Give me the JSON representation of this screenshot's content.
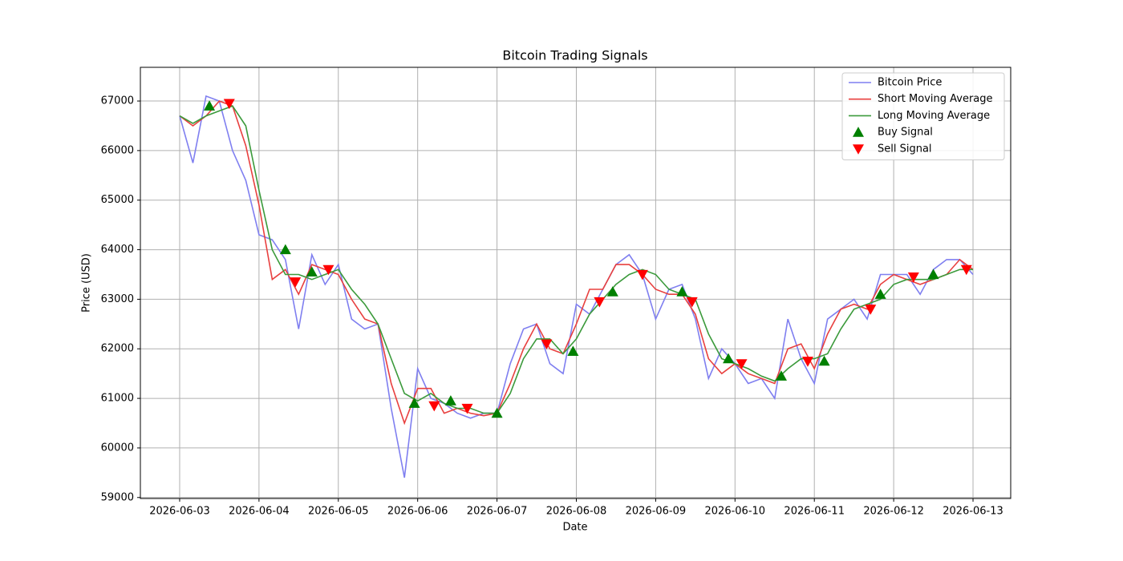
{
  "chart_data": {
    "type": "line",
    "title": "Bitcoin Trading Signals",
    "xlabel": "Date",
    "ylabel": "Price (USD)",
    "grid": true,
    "legend": "upper right",
    "xlim": [
      "2026-06-02 12:07",
      "2026-06-13 11:24"
    ],
    "xticks": [
      "2026-06-03",
      "2026-06-04",
      "2026-06-05",
      "2026-06-06",
      "2026-06-07",
      "2026-06-08",
      "2026-06-09",
      "2026-06-10",
      "2026-06-11",
      "2026-06-12",
      "2026-06-13"
    ],
    "ylim": [
      58980,
      67680
    ],
    "yticks": [
      59000,
      60000,
      61000,
      62000,
      63000,
      64000,
      65000,
      66000,
      67000
    ],
    "x": [
      "2026-06-03 00:00",
      "2026-06-03 04:00",
      "2026-06-03 08:00",
      "2026-06-03 12:00",
      "2026-06-03 16:00",
      "2026-06-03 20:00",
      "2026-06-04 00:00",
      "2026-06-04 04:00",
      "2026-06-04 08:00",
      "2026-06-04 12:00",
      "2026-06-04 16:00",
      "2026-06-04 20:00",
      "2026-06-05 00:00",
      "2026-06-05 04:00",
      "2026-06-05 08:00",
      "2026-06-05 12:00",
      "2026-06-05 16:00",
      "2026-06-05 20:00",
      "2026-06-06 00:00",
      "2026-06-06 04:00",
      "2026-06-06 08:00",
      "2026-06-06 12:00",
      "2026-06-06 16:00",
      "2026-06-06 20:00",
      "2026-06-07 00:00",
      "2026-06-07 04:00",
      "2026-06-07 08:00",
      "2026-06-07 12:00",
      "2026-06-07 16:00",
      "2026-06-07 20:00",
      "2026-06-08 00:00",
      "2026-06-08 04:00",
      "2026-06-08 08:00",
      "2026-06-08 12:00",
      "2026-06-08 16:00",
      "2026-06-08 20:00",
      "2026-06-09 00:00",
      "2026-06-09 04:00",
      "2026-06-09 08:00",
      "2026-06-09 12:00",
      "2026-06-09 16:00",
      "2026-06-09 20:00",
      "2026-06-10 00:00",
      "2026-06-10 04:00",
      "2026-06-10 08:00",
      "2026-06-10 12:00",
      "2026-06-10 16:00",
      "2026-06-10 20:00",
      "2026-06-11 00:00",
      "2026-06-11 04:00",
      "2026-06-11 08:00",
      "2026-06-11 12:00",
      "2026-06-11 16:00",
      "2026-06-11 20:00",
      "2026-06-12 00:00",
      "2026-06-12 04:00",
      "2026-06-12 08:00",
      "2026-06-12 12:00",
      "2026-06-12 16:00",
      "2026-06-12 20:00",
      "2026-06-13 00:00"
    ],
    "series": [
      {
        "name": "Bitcoin Price",
        "type": "line",
        "color": "#7f7ff0",
        "values": [
          66700,
          65750,
          67100,
          67000,
          66000,
          65400,
          64300,
          64200,
          63800,
          62400,
          63900,
          63300,
          63700,
          62600,
          62400,
          62500,
          60800,
          59400,
          61600,
          61000,
          60900,
          60700,
          60600,
          60700,
          60700,
          61700,
          62400,
          62500,
          61700,
          61500,
          62900,
          62700,
          63200,
          63700,
          63900,
          63500,
          62600,
          63200,
          63300,
          62600,
          61400,
          62000,
          61700,
          61300,
          61400,
          61000,
          62600,
          61800,
          61300,
          62600,
          62800,
          63000,
          62600,
          63500,
          63500,
          63500,
          63100,
          63600,
          63800,
          63800,
          63500
        ]
      },
      {
        "name": "Short Moving Average",
        "type": "line",
        "color": "#e8403f",
        "values": [
          66700,
          66500,
          66700,
          67000,
          66900,
          66100,
          64900,
          63400,
          63600,
          63100,
          63700,
          63600,
          63500,
          63000,
          62600,
          62500,
          61300,
          60500,
          61200,
          61200,
          60700,
          60800,
          60700,
          60650,
          60700,
          61300,
          62000,
          62500,
          62000,
          61900,
          62500,
          63200,
          63200,
          63700,
          63700,
          63500,
          63200,
          63100,
          63100,
          62700,
          61800,
          61500,
          61700,
          61500,
          61400,
          61300,
          62000,
          62100,
          61600,
          62300,
          62800,
          62900,
          62800,
          63300,
          63500,
          63400,
          63300,
          63400,
          63500,
          63800,
          63600
        ]
      },
      {
        "name": "Long Moving Average",
        "type": "line",
        "color": "#3b9a3b",
        "values": [
          66700,
          66550,
          66700,
          66800,
          66900,
          66500,
          65200,
          64000,
          63500,
          63500,
          63400,
          63500,
          63600,
          63200,
          62900,
          62500,
          61800,
          61100,
          60950,
          61100,
          60900,
          60800,
          60800,
          60700,
          60700,
          61100,
          61800,
          62200,
          62200,
          61900,
          62200,
          62700,
          63000,
          63300,
          63500,
          63600,
          63500,
          63200,
          63100,
          63000,
          62300,
          61800,
          61700,
          61600,
          61450,
          61350,
          61600,
          61800,
          61800,
          61900,
          62400,
          62800,
          62900,
          63000,
          63300,
          63400,
          63400,
          63400,
          63500,
          63600,
          63600
        ]
      },
      {
        "name": "Buy Signal",
        "type": "scatter",
        "marker": "up",
        "color": "#008000",
        "x": [
          "2026-06-03 09:00",
          "2026-06-04 08:00",
          "2026-06-04 16:00",
          "2026-06-05 23:00",
          "2026-06-06 10:00",
          "2026-06-07 00:00",
          "2026-06-07 23:00",
          "2026-06-08 11:00",
          "2026-06-09 08:00",
          "2026-06-09 22:00",
          "2026-06-10 14:00",
          "2026-06-11 03:00",
          "2026-06-11 20:00",
          "2026-06-12 12:00"
        ],
        "values": [
          66900,
          64000,
          63550,
          60900,
          60950,
          60700,
          61950,
          63150,
          63150,
          61800,
          61450,
          61750,
          63100,
          63500
        ]
      },
      {
        "name": "Sell Signal",
        "type": "scatter",
        "marker": "down",
        "color": "#ff0000",
        "x": [
          "2026-06-03 15:00",
          "2026-06-04 11:00",
          "2026-06-04 21:00",
          "2026-06-06 05:00",
          "2026-06-06 15:00",
          "2026-06-07 15:00",
          "2026-06-08 07:00",
          "2026-06-08 20:00",
          "2026-06-09 11:00",
          "2026-06-10 02:00",
          "2026-06-10 22:00",
          "2026-06-11 17:00",
          "2026-06-12 06:00",
          "2026-06-12 22:00"
        ],
        "values": [
          66950,
          63350,
          63600,
          60850,
          60800,
          62100,
          62950,
          63500,
          62950,
          61700,
          61750,
          62800,
          63450,
          63600
        ]
      }
    ]
  }
}
